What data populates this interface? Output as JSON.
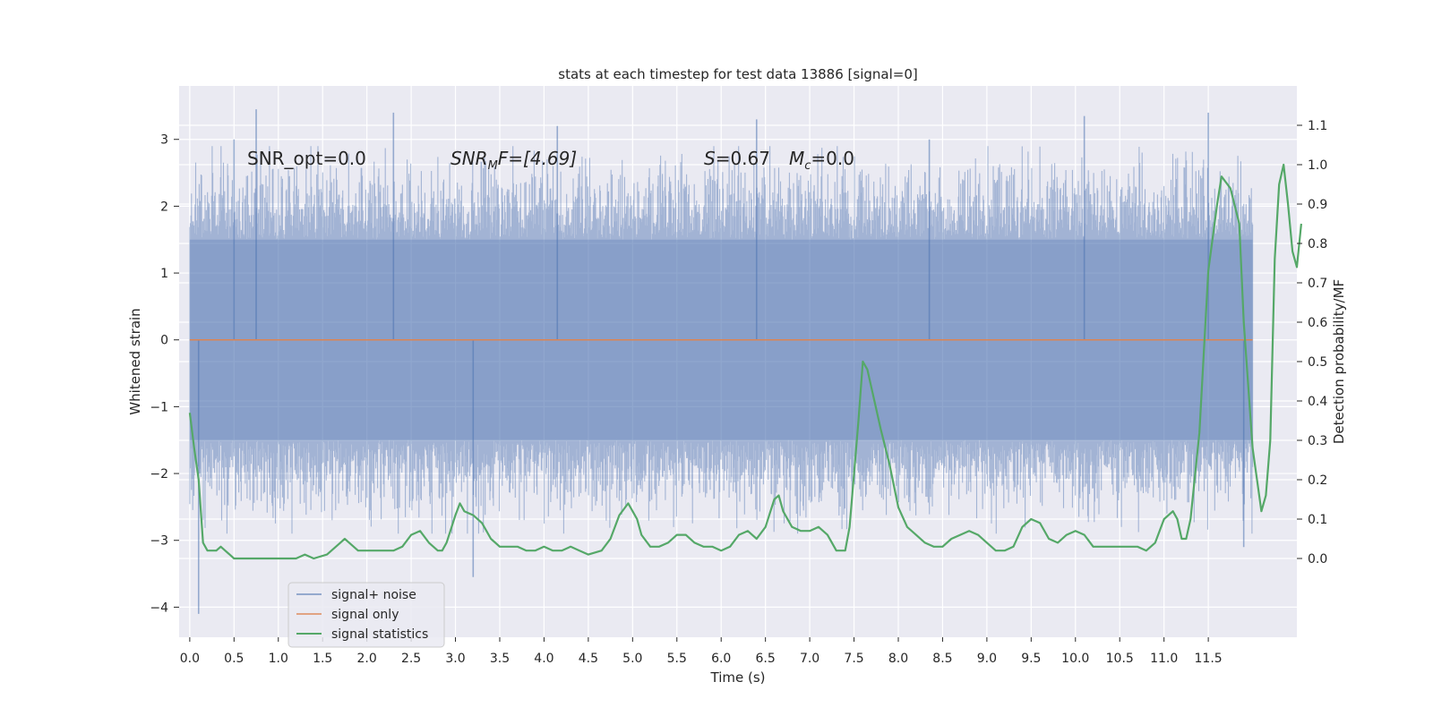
{
  "chart_data": {
    "type": "line",
    "title": "stats at each timestep for test data 13886 [signal=0]",
    "xlabel": "Time (s)",
    "ylabel": "Whitened strain",
    "y2label": "Detection probability/MF",
    "xlim": [
      -0.12,
      12.5
    ],
    "ylim": [
      -4.45,
      3.8
    ],
    "y2lim": [
      -0.2,
      1.2
    ],
    "x_ticks": [
      "0.0",
      "0.5",
      "1.0",
      "1.5",
      "2.0",
      "2.5",
      "3.0",
      "3.5",
      "4.0",
      "4.5",
      "5.0",
      "5.5",
      "6.0",
      "6.5",
      "7.0",
      "7.5",
      "8.0",
      "8.5",
      "9.0",
      "9.5",
      "10.0",
      "10.5",
      "11.0",
      "11.5"
    ],
    "y_ticks": [
      "3",
      "2",
      "1",
      "0",
      "−1",
      "−2",
      "−3",
      "−4"
    ],
    "y2_ticks": [
      "1.1",
      "1.0",
      "0.9",
      "0.8",
      "0.7",
      "0.6",
      "0.5",
      "0.4",
      "0.3",
      "0.2",
      "0.1",
      "0.0"
    ],
    "annotations": {
      "snr_opt": "SNR_opt=0.0",
      "snr_mf_main": "SNR",
      "snr_mf_sub": "M",
      "snr_mf_rest": "F=[4.69]",
      "s_value_var": "S",
      "s_value_rest": "=0.67",
      "mc_main": "M",
      "mc_sub": "c",
      "mc_rest": "=0.0"
    },
    "grid": true,
    "legend_position": "lower-left",
    "colors": {
      "background": "#eaeaf2",
      "grid": "#ffffff",
      "signal_noise": "#4c72b0",
      "signal_only": "#dd8452",
      "signal_statistics": "#55a868"
    },
    "series": [
      {
        "name": "signal+ noise",
        "axis": "left",
        "x_range": [
          0,
          12.0
        ],
        "typical_envelope": [
          -1.5,
          1.5
        ],
        "approx_peaks": [
          [
            0.1,
            -4.1
          ],
          [
            0.5,
            3.0
          ],
          [
            0.75,
            3.45
          ],
          [
            2.3,
            3.4
          ],
          [
            3.2,
            -3.55
          ],
          [
            4.15,
            3.2
          ],
          [
            6.4,
            3.3
          ],
          [
            8.35,
            3.0
          ],
          [
            10.1,
            3.35
          ],
          [
            11.5,
            3.4
          ],
          [
            11.9,
            -3.1
          ]
        ]
      },
      {
        "name": "signal only",
        "axis": "left",
        "x": [
          0,
          12.0
        ],
        "y": [
          0,
          0
        ]
      },
      {
        "name": "signal statistics",
        "axis": "right",
        "points": [
          [
            0.0,
            0.37
          ],
          [
            0.05,
            0.28
          ],
          [
            0.1,
            0.2
          ],
          [
            0.15,
            0.04
          ],
          [
            0.2,
            0.02
          ],
          [
            0.25,
            0.02
          ],
          [
            0.3,
            0.02
          ],
          [
            0.35,
            0.03
          ],
          [
            0.4,
            0.02
          ],
          [
            0.45,
            0.01
          ],
          [
            0.5,
            0.0
          ],
          [
            0.6,
            0.0
          ],
          [
            0.7,
            0.0
          ],
          [
            0.8,
            0.0
          ],
          [
            1.0,
            0.0
          ],
          [
            1.2,
            0.0
          ],
          [
            1.3,
            0.01
          ],
          [
            1.4,
            0.0
          ],
          [
            1.55,
            0.01
          ],
          [
            1.7,
            0.04
          ],
          [
            1.75,
            0.05
          ],
          [
            1.8,
            0.04
          ],
          [
            1.9,
            0.02
          ],
          [
            2.0,
            0.02
          ],
          [
            2.1,
            0.02
          ],
          [
            2.2,
            0.02
          ],
          [
            2.3,
            0.02
          ],
          [
            2.4,
            0.03
          ],
          [
            2.5,
            0.06
          ],
          [
            2.6,
            0.07
          ],
          [
            2.7,
            0.04
          ],
          [
            2.8,
            0.02
          ],
          [
            2.85,
            0.02
          ],
          [
            2.9,
            0.04
          ],
          [
            3.0,
            0.11
          ],
          [
            3.05,
            0.14
          ],
          [
            3.1,
            0.12
          ],
          [
            3.2,
            0.11
          ],
          [
            3.3,
            0.09
          ],
          [
            3.4,
            0.05
          ],
          [
            3.5,
            0.03
          ],
          [
            3.6,
            0.03
          ],
          [
            3.7,
            0.03
          ],
          [
            3.8,
            0.02
          ],
          [
            3.9,
            0.02
          ],
          [
            4.0,
            0.03
          ],
          [
            4.1,
            0.02
          ],
          [
            4.2,
            0.02
          ],
          [
            4.3,
            0.03
          ],
          [
            4.4,
            0.02
          ],
          [
            4.5,
            0.01
          ],
          [
            4.65,
            0.02
          ],
          [
            4.75,
            0.05
          ],
          [
            4.85,
            0.11
          ],
          [
            4.95,
            0.14
          ],
          [
            5.05,
            0.1
          ],
          [
            5.1,
            0.06
          ],
          [
            5.2,
            0.03
          ],
          [
            5.3,
            0.03
          ],
          [
            5.4,
            0.04
          ],
          [
            5.5,
            0.06
          ],
          [
            5.6,
            0.06
          ],
          [
            5.7,
            0.04
          ],
          [
            5.8,
            0.03
          ],
          [
            5.9,
            0.03
          ],
          [
            6.0,
            0.02
          ],
          [
            6.1,
            0.03
          ],
          [
            6.2,
            0.06
          ],
          [
            6.3,
            0.07
          ],
          [
            6.35,
            0.06
          ],
          [
            6.4,
            0.05
          ],
          [
            6.5,
            0.08
          ],
          [
            6.6,
            0.15
          ],
          [
            6.65,
            0.16
          ],
          [
            6.7,
            0.12
          ],
          [
            6.8,
            0.08
          ],
          [
            6.9,
            0.07
          ],
          [
            7.0,
            0.07
          ],
          [
            7.1,
            0.08
          ],
          [
            7.2,
            0.06
          ],
          [
            7.3,
            0.02
          ],
          [
            7.4,
            0.02
          ],
          [
            7.45,
            0.08
          ],
          [
            7.55,
            0.35
          ],
          [
            7.6,
            0.5
          ],
          [
            7.65,
            0.48
          ],
          [
            7.75,
            0.38
          ],
          [
            7.8,
            0.33
          ],
          [
            7.9,
            0.24
          ],
          [
            8.0,
            0.13
          ],
          [
            8.1,
            0.08
          ],
          [
            8.2,
            0.06
          ],
          [
            8.3,
            0.04
          ],
          [
            8.4,
            0.03
          ],
          [
            8.5,
            0.03
          ],
          [
            8.6,
            0.05
          ],
          [
            8.7,
            0.06
          ],
          [
            8.8,
            0.07
          ],
          [
            8.9,
            0.06
          ],
          [
            9.0,
            0.04
          ],
          [
            9.1,
            0.02
          ],
          [
            9.2,
            0.02
          ],
          [
            9.3,
            0.03
          ],
          [
            9.4,
            0.08
          ],
          [
            9.5,
            0.1
          ],
          [
            9.6,
            0.09
          ],
          [
            9.7,
            0.05
          ],
          [
            9.8,
            0.04
          ],
          [
            9.9,
            0.06
          ],
          [
            10.0,
            0.07
          ],
          [
            10.1,
            0.06
          ],
          [
            10.2,
            0.03
          ],
          [
            10.3,
            0.03
          ],
          [
            10.5,
            0.03
          ],
          [
            10.7,
            0.03
          ],
          [
            10.8,
            0.02
          ],
          [
            10.9,
            0.04
          ],
          [
            11.0,
            0.1
          ],
          [
            11.1,
            0.12
          ],
          [
            11.15,
            0.1
          ],
          [
            11.2,
            0.05
          ],
          [
            11.25,
            0.05
          ],
          [
            11.3,
            0.1
          ],
          [
            11.4,
            0.32
          ],
          [
            11.5,
            0.73
          ],
          [
            11.6,
            0.9
          ],
          [
            11.65,
            0.97
          ],
          [
            11.75,
            0.94
          ],
          [
            11.85,
            0.85
          ],
          [
            11.9,
            0.6
          ],
          [
            12.0,
            0.28
          ],
          [
            12.05,
            0.2
          ],
          [
            12.1,
            0.12
          ],
          [
            12.15,
            0.16
          ],
          [
            12.2,
            0.3
          ],
          [
            12.25,
            0.76
          ],
          [
            12.3,
            0.95
          ],
          [
            12.35,
            1.0
          ],
          [
            12.4,
            0.9
          ],
          [
            12.45,
            0.78
          ],
          [
            12.5,
            0.74
          ],
          [
            12.55,
            0.85
          ]
        ]
      }
    ]
  }
}
